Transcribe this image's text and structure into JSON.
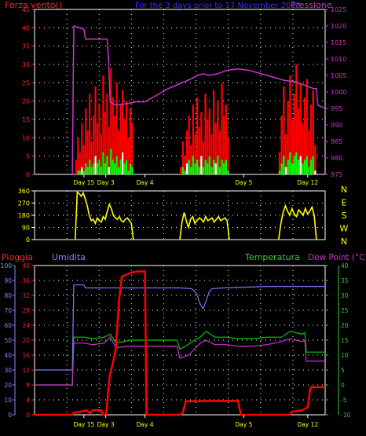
{
  "colors": {
    "bg": "#000000",
    "frame": "#ffffff",
    "grid": "#ffffff",
    "wind_red": "#ff0000",
    "wind_green": "#00ff00",
    "wind_white": "#ffffff",
    "pressure": "#cc33cc",
    "title": "#3333ff",
    "direction": "#ffff00",
    "humidity": "#7777ff",
    "temperature": "#00cc00",
    "dewpoint": "#cc33cc",
    "rain": "#ff0000",
    "axis_red": "#ff2222",
    "axis_humid": "#8888ff",
    "axis_temp": "#33cc33",
    "axis_dew": "#cc33cc"
  },
  "chart_data": [
    {
      "type": "bar",
      "title": "For the 3 days prior to 17 November 2013",
      "left_axis_label": "Forza vento()",
      "right_axis_label": "Pressione",
      "left_ylim": [
        0,
        45
      ],
      "left_ticks": [
        0,
        5,
        10,
        15,
        20,
        25,
        30,
        35,
        40,
        45
      ],
      "right_ylim": [
        975,
        1025
      ],
      "right_ticks": [
        975,
        980,
        985,
        990,
        995,
        1000,
        1005,
        1010,
        1015,
        1020,
        1025
      ],
      "x_labels": [
        {
          "label": "Day 15",
          "x": 0.17
        },
        {
          "label": "Day 3",
          "x": 0.245
        },
        {
          "label": "Day 4",
          "x": 0.38
        },
        {
          "label": "Day 5",
          "x": 0.72
        },
        {
          "label": "Day 12",
          "x": 0.94
        }
      ],
      "pressure": {
        "x": [
          0.13,
          0.135,
          0.17,
          0.175,
          0.25,
          0.255,
          0.26,
          0.28,
          0.32,
          0.35,
          0.38,
          0.4,
          0.43,
          0.46,
          0.5,
          0.54,
          0.56,
          0.58,
          0.6,
          0.63,
          0.66,
          0.7,
          0.74,
          0.78,
          0.82,
          0.86,
          0.9,
          0.93,
          0.96,
          0.97,
          0.975,
          1.0
        ],
        "y": [
          975,
          1020,
          1019,
          1016,
          1016,
          1009,
          997,
          996,
          996.5,
          997,
          997,
          998,
          999.5,
          1001,
          1002.5,
          1004,
          1005,
          1005.5,
          1005,
          1005.5,
          1006.5,
          1007,
          1006.5,
          1005.5,
          1004.5,
          1003.5,
          1003,
          1002,
          1001,
          1001,
          996,
          995
        ]
      },
      "wind_gust": {
        "segments": [
          [
            0.14,
            0.34
          ],
          [
            0.5,
            0.67
          ],
          [
            0.84,
            0.97
          ]
        ],
        "values": [
          [
            4,
            10,
            6,
            14,
            8,
            18,
            12,
            22,
            9,
            16,
            24,
            14,
            19,
            11,
            27,
            17,
            22,
            13,
            29,
            21,
            16,
            25,
            12,
            19,
            23,
            15,
            20,
            10,
            18,
            14
          ],
          [
            2,
            9,
            5,
            12,
            16,
            8,
            19,
            11,
            21,
            13,
            17,
            9,
            22,
            15,
            18,
            11,
            23,
            14,
            20,
            12,
            25,
            16,
            19,
            10
          ],
          [
            6,
            16,
            24,
            11,
            20,
            27,
            15,
            22,
            30,
            18,
            25,
            14,
            21,
            26,
            12,
            19,
            23,
            8
          ]
        ]
      },
      "wind_avg": {
        "values": [
          [
            0,
            1,
            1,
            2,
            1,
            3,
            2,
            4,
            2,
            3,
            5,
            3,
            4,
            2,
            6,
            3,
            5,
            2,
            7,
            4,
            3,
            5,
            2,
            4,
            6,
            3,
            4,
            1,
            3,
            2
          ],
          [
            0,
            2,
            1,
            3,
            4,
            2,
            5,
            3,
            4,
            2,
            5,
            2,
            4,
            3,
            5,
            2,
            4,
            3,
            5,
            2,
            4,
            3,
            4,
            1
          ],
          [
            1,
            3,
            5,
            2,
            4,
            6,
            3,
            5,
            6,
            4,
            5,
            3,
            4,
            5,
            2,
            4,
            5,
            1
          ]
        ]
      }
    },
    {
      "type": "line",
      "left_ylim": [
        0,
        360
      ],
      "left_ticks": [
        0,
        90,
        180,
        270,
        360
      ],
      "right_labels": [
        "N",
        "W",
        "S",
        "E",
        "N"
      ],
      "x_labels": [],
      "direction": {
        "segments": [
          [
            0.14,
            0.34
          ],
          [
            0.5,
            0.67
          ],
          [
            0.84,
            0.97
          ]
        ],
        "values": [
          [
            0,
            350,
            340,
            320,
            345,
            300,
            250,
            180,
            140,
            150,
            120,
            160,
            140,
            130,
            170,
            150,
            210,
            260,
            230,
            180,
            160,
            150,
            170,
            140,
            130,
            150,
            160,
            140,
            120,
            0
          ],
          [
            0,
            130,
            200,
            140,
            90,
            150,
            170,
            120,
            140,
            160,
            150,
            130,
            170,
            140,
            150,
            160,
            130,
            150,
            170,
            140,
            150,
            160,
            140,
            0
          ],
          [
            0,
            120,
            200,
            250,
            210,
            180,
            230,
            190,
            170,
            220,
            200,
            180,
            230,
            190,
            210,
            240,
            180,
            0
          ]
        ]
      }
    },
    {
      "type": "line",
      "labels": {
        "rain": "Pioggia",
        "humidity": "Umidita",
        "temperature": "Temperatura",
        "dewpoint": "Dew Point (°C)"
      },
      "rain_ylim": [
        0,
        40
      ],
      "rain_ticks": [
        0,
        4,
        8,
        12,
        16,
        20,
        24,
        28,
        32,
        36,
        40
      ],
      "humid_ylim": [
        0,
        100
      ],
      "humid_ticks": [
        0,
        10,
        20,
        30,
        40,
        50,
        60,
        70,
        80,
        90,
        100
      ],
      "temp_ylim": [
        -10,
        40
      ],
      "temp_ticks": [
        -10,
        -5,
        0,
        5,
        10,
        15,
        20,
        25,
        30,
        35,
        40
      ],
      "x_labels": [
        {
          "label": "Day 15",
          "x": 0.17
        },
        {
          "label": "Day 3",
          "x": 0.245
        },
        {
          "label": "Day 4",
          "x": 0.38
        },
        {
          "label": "Day 5",
          "x": 0.72
        },
        {
          "label": "Day 12",
          "x": 0.94
        }
      ],
      "humidity": {
        "x": [
          0.0,
          0.13,
          0.135,
          0.17,
          0.175,
          0.25,
          0.3,
          0.4,
          0.5,
          0.54,
          0.55,
          0.56,
          0.57,
          0.58,
          0.59,
          0.6,
          0.61,
          0.65,
          0.8,
          0.9,
          1.0
        ],
        "y": [
          30,
          30,
          87,
          87,
          85,
          85,
          85,
          85,
          85,
          84.5,
          83,
          80,
          74,
          71,
          76,
          82,
          84.5,
          85,
          86,
          86,
          86
        ]
      },
      "temperature": {
        "x": [
          0.0,
          0.13,
          0.135,
          0.17,
          0.2,
          0.24,
          0.26,
          0.28,
          0.33,
          0.38,
          0.42,
          0.46,
          0.49,
          0.5,
          0.52,
          0.55,
          0.57,
          0.59,
          0.62,
          0.66,
          0.7,
          0.75,
          0.8,
          0.85,
          0.88,
          0.9,
          0.92,
          0.93,
          0.935,
          1.0
        ],
        "y": [
          0,
          0,
          16,
          16,
          15.5,
          16,
          17,
          14,
          15,
          15,
          15,
          15,
          15,
          12,
          13,
          15,
          16,
          18,
          16,
          16,
          15.5,
          15.5,
          16,
          16,
          18,
          17.5,
          17,
          17.5,
          11,
          11
        ]
      },
      "dewpoint": {
        "x": [
          0.0,
          0.13,
          0.135,
          0.17,
          0.2,
          0.24,
          0.26,
          0.28,
          0.33,
          0.38,
          0.42,
          0.46,
          0.49,
          0.5,
          0.53,
          0.55,
          0.57,
          0.59,
          0.62,
          0.66,
          0.7,
          0.75,
          0.8,
          0.85,
          0.88,
          0.9,
          0.92,
          0.93,
          0.935,
          1.0
        ],
        "y": [
          0,
          0,
          14,
          14,
          13.5,
          14,
          16,
          12.5,
          13,
          13,
          13,
          13,
          13,
          9,
          10,
          12,
          14,
          15,
          13.5,
          13.5,
          13,
          13,
          13.5,
          14.5,
          15.5,
          15,
          14.5,
          15,
          8,
          8
        ]
      },
      "rain": {
        "x": [
          0.0,
          0.13,
          0.135,
          0.17,
          0.18,
          0.19,
          0.2,
          0.23,
          0.235,
          0.245,
          0.25,
          0.255,
          0.26,
          0.27,
          0.28,
          0.29,
          0.3,
          0.33,
          0.35,
          0.37,
          0.38,
          0.385,
          0.5,
          0.51,
          0.52,
          0.6,
          0.7,
          0.71,
          0.72,
          0.84,
          0.88,
          0.885,
          0.92,
          0.94,
          0.95,
          1.0
        ],
        "y": [
          0,
          0,
          0.6,
          1.0,
          1.2,
          0.4,
          1.2,
          1.2,
          0,
          0,
          3,
          8,
          11,
          14,
          18,
          30,
          37,
          38,
          38.4,
          38.4,
          38.4,
          0,
          0,
          0.5,
          3.6,
          3.7,
          3.7,
          0,
          0,
          0,
          0,
          0.8,
          1.2,
          2,
          7.4,
          7.4
        ]
      }
    }
  ]
}
